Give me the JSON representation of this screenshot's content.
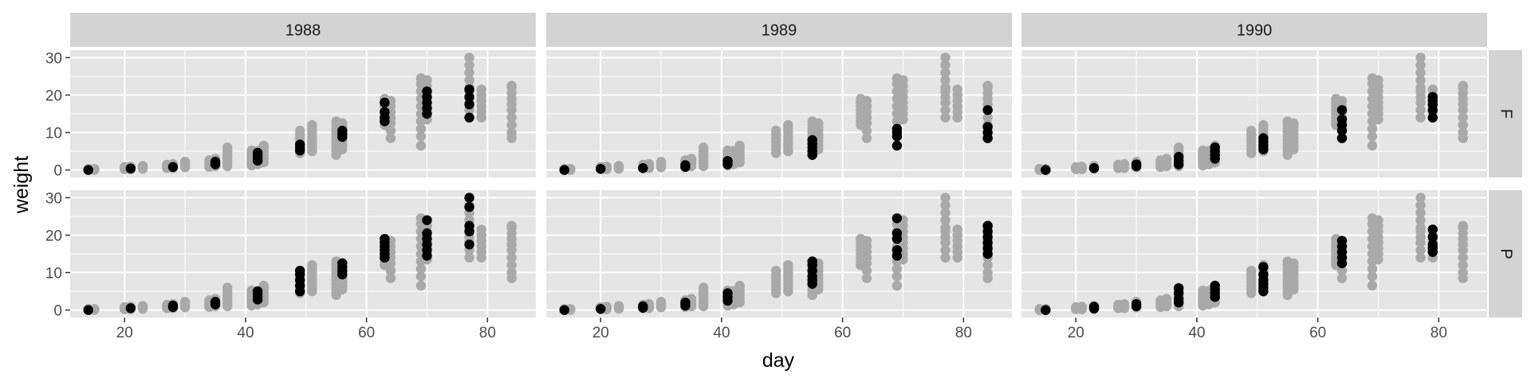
{
  "chart_data": {
    "type": "scatter",
    "xlabel": "day",
    "ylabel": "weight",
    "xlim": [
      11,
      88
    ],
    "ylim": [
      -2,
      32
    ],
    "x_ticks": [
      20,
      40,
      60,
      80
    ],
    "y_ticks": [
      0,
      10,
      20,
      30
    ],
    "grid": true,
    "columns": [
      "1988",
      "1989",
      "1990"
    ],
    "rows": [
      "F",
      "P"
    ],
    "colors": {
      "panel_bg": "#e5e5e5",
      "grid": "#ffffff",
      "strip_bg": "#d3d3d3",
      "background_points": "#a9a9a9",
      "highlight_points": "#000000"
    },
    "background_points": [
      {
        "day": 14,
        "weights": [
          0,
          0.3
        ]
      },
      {
        "day": 15,
        "weights": [
          0,
          0.3
        ]
      },
      {
        "day": 20,
        "weights": [
          0.2,
          0.5,
          0.8
        ]
      },
      {
        "day": 21,
        "weights": [
          0.2,
          0.5,
          0.9
        ]
      },
      {
        "day": 23,
        "weights": [
          0.3,
          0.7,
          1.1
        ]
      },
      {
        "day": 27,
        "weights": [
          0.5,
          0.9,
          1.4
        ]
      },
      {
        "day": 28,
        "weights": [
          0.5,
          1.0,
          1.6
        ]
      },
      {
        "day": 30,
        "weights": [
          0.7,
          1.2,
          1.9,
          2.2
        ]
      },
      {
        "day": 34,
        "weights": [
          0.8,
          1.3,
          1.9,
          2.6
        ]
      },
      {
        "day": 35,
        "weights": [
          1.0,
          1.6,
          2.3,
          3.0
        ]
      },
      {
        "day": 37,
        "weights": [
          1.0,
          1.8,
          2.6,
          3.4,
          4.2,
          5.0,
          6.0
        ]
      },
      {
        "day": 41,
        "weights": [
          1.2,
          2.0,
          2.8,
          3.6,
          4.4,
          5.2
        ]
      },
      {
        "day": 42,
        "weights": [
          1.5,
          2.4,
          3.3,
          4.2,
          5.1
        ]
      },
      {
        "day": 43,
        "weights": [
          2.0,
          3.0,
          4.0,
          5.0,
          6.0,
          6.5
        ]
      },
      {
        "day": 49,
        "weights": [
          4.5,
          5.5,
          6.5,
          7.5,
          8.5,
          9.5,
          10.5
        ]
      },
      {
        "day": 51,
        "weights": [
          5.0,
          6.0,
          7.0,
          8.0,
          9.0,
          10.0,
          11.0,
          12.0
        ]
      },
      {
        "day": 55,
        "weights": [
          4.0,
          5.0,
          6.0,
          7.0,
          8.0,
          9.0,
          10.0,
          11.0,
          12.0,
          13.0
        ]
      },
      {
        "day": 56,
        "weights": [
          5.5,
          6.5,
          7.5,
          8.5,
          9.5,
          10.5,
          11.5,
          12.5
        ]
      },
      {
        "day": 63,
        "weights": [
          12.0,
          13.0,
          14.0,
          15.0,
          16.0,
          17.0,
          18.0,
          19.0
        ]
      },
      {
        "day": 64,
        "weights": [
          8.5,
          10.5,
          12.5,
          14.0,
          15.5,
          17.0,
          18.5
        ]
      },
      {
        "day": 69,
        "weights": [
          6.5,
          9.0,
          11.0,
          13.0,
          15.0,
          17.0,
          19.0,
          21.0,
          23.0,
          24.5
        ]
      },
      {
        "day": 70,
        "weights": [
          13.5,
          15.0,
          16.5,
          18.0,
          19.5,
          21.0,
          22.5,
          24.0
        ]
      },
      {
        "day": 77,
        "weights": [
          14.0,
          16.0,
          18.0,
          19.5,
          21.0,
          22.0,
          24.0,
          26.0,
          28.0,
          30.0
        ]
      },
      {
        "day": 79,
        "weights": [
          14.0,
          15.5,
          17.0,
          18.5,
          20.0,
          21.5
        ]
      },
      {
        "day": 84,
        "weights": [
          8.5,
          10.0,
          12.0,
          14.0,
          16.0,
          17.5,
          19.0,
          20.5,
          22.0,
          22.5
        ]
      }
    ],
    "panels": [
      {
        "column": "1988",
        "row": "F",
        "highlight": [
          {
            "day": 14,
            "weights": [
              0
            ]
          },
          {
            "day": 21,
            "weights": [
              0.4
            ]
          },
          {
            "day": 28,
            "weights": [
              0.8
            ]
          },
          {
            "day": 35,
            "weights": [
              1.5,
              2.2
            ]
          },
          {
            "day": 42,
            "weights": [
              2.5,
              3.2,
              4.0,
              4.6
            ]
          },
          {
            "day": 49,
            "weights": [
              5.2,
              6.0,
              6.8
            ]
          },
          {
            "day": 56,
            "weights": [
              8.8,
              9.6,
              10.5
            ]
          },
          {
            "day": 63,
            "weights": [
              13.0,
              14.0,
              15.5,
              18.0
            ]
          },
          {
            "day": 70,
            "weights": [
              15.0,
              16.5,
              18.0,
              19.5,
              21.0
            ]
          },
          {
            "day": 77,
            "weights": [
              14.0,
              17.5,
              19.5,
              21.5
            ]
          }
        ]
      },
      {
        "column": "1989",
        "row": "F",
        "highlight": [
          {
            "day": 14,
            "weights": [
              0
            ]
          },
          {
            "day": 20,
            "weights": [
              0.3
            ]
          },
          {
            "day": 27,
            "weights": [
              0.5
            ]
          },
          {
            "day": 34,
            "weights": [
              0.8,
              1.3
            ]
          },
          {
            "day": 41,
            "weights": [
              1.5,
              2.4
            ]
          },
          {
            "day": 55,
            "weights": [
              4.0,
              5.0,
              6.0,
              7.0,
              8.0
            ]
          },
          {
            "day": 69,
            "weights": [
              6.5,
              9.0,
              10.0,
              11.0
            ]
          },
          {
            "day": 84,
            "weights": [
              8.5,
              10.0,
              11.5,
              16.0
            ]
          }
        ]
      },
      {
        "column": "1990",
        "row": "F",
        "highlight": [
          {
            "day": 15,
            "weights": [
              0
            ]
          },
          {
            "day": 23,
            "weights": [
              0.5
            ]
          },
          {
            "day": 30,
            "weights": [
              1.0,
              1.5
            ]
          },
          {
            "day": 37,
            "weights": [
              1.5,
              2.5,
              3.5
            ]
          },
          {
            "day": 43,
            "weights": [
              3.0,
              4.0,
              5.0,
              6.0
            ]
          },
          {
            "day": 51,
            "weights": [
              5.5,
              6.5,
              7.5,
              8.5
            ]
          },
          {
            "day": 64,
            "weights": [
              8.5,
              10.5,
              12.0,
              13.5,
              16.0
            ]
          },
          {
            "day": 79,
            "weights": [
              14.0,
              16.0,
              17.5,
              18.5,
              19.5
            ]
          }
        ]
      },
      {
        "column": "1988",
        "row": "P",
        "highlight": [
          {
            "day": 14,
            "weights": [
              0
            ]
          },
          {
            "day": 21,
            "weights": [
              0.5
            ]
          },
          {
            "day": 28,
            "weights": [
              0.8,
              1.2
            ]
          },
          {
            "day": 35,
            "weights": [
              1.5,
              2.2
            ]
          },
          {
            "day": 42,
            "weights": [
              2.8,
              3.6,
              4.4,
              5.0
            ]
          },
          {
            "day": 49,
            "weights": [
              5.0,
              6.5,
              8.0,
              9.5,
              10.5
            ]
          },
          {
            "day": 56,
            "weights": [
              9.5,
              10.5,
              11.5,
              12.5
            ]
          },
          {
            "day": 63,
            "weights": [
              14.0,
              15.0,
              16.0,
              17.0,
              18.0,
              19.0
            ]
          },
          {
            "day": 70,
            "weights": [
              14.5,
              16.0,
              17.5,
              19.0,
              20.5,
              24.0
            ]
          },
          {
            "day": 77,
            "weights": [
              17.5,
              21.0,
              22.5,
              27.5,
              30.0
            ]
          }
        ]
      },
      {
        "column": "1989",
        "row": "P",
        "highlight": [
          {
            "day": 14,
            "weights": [
              0
            ]
          },
          {
            "day": 20,
            "weights": [
              0.3
            ]
          },
          {
            "day": 27,
            "weights": [
              0.6,
              1.0
            ]
          },
          {
            "day": 34,
            "weights": [
              1.2,
              2.0
            ]
          },
          {
            "day": 41,
            "weights": [
              2.5,
              3.5,
              4.5
            ]
          },
          {
            "day": 55,
            "weights": [
              7.0,
              8.0,
              9.0,
              10.5,
              12.0,
              13.0
            ]
          },
          {
            "day": 69,
            "weights": [
              14.5,
              16.0,
              19.0,
              20.5,
              24.5
            ]
          },
          {
            "day": 84,
            "weights": [
              15.0,
              16.5,
              18.0,
              19.5,
              21.0,
              22.5
            ]
          }
        ]
      },
      {
        "column": "1990",
        "row": "P",
        "highlight": [
          {
            "day": 15,
            "weights": [
              0
            ]
          },
          {
            "day": 23,
            "weights": [
              0.4,
              0.9
            ]
          },
          {
            "day": 30,
            "weights": [
              1.0,
              1.6
            ]
          },
          {
            "day": 37,
            "weights": [
              2.0,
              3.0,
              4.5,
              5.8
            ]
          },
          {
            "day": 43,
            "weights": [
              3.5,
              4.5,
              5.5,
              6.5
            ]
          },
          {
            "day": 51,
            "weights": [
              5.0,
              6.0,
              7.0,
              8.0,
              9.5,
              11.5
            ]
          },
          {
            "day": 64,
            "weights": [
              12.5,
              14.0,
              15.5,
              17.0,
              18.5
            ]
          },
          {
            "day": 79,
            "weights": [
              15.5,
              16.5,
              17.5,
              19.5,
              21.5
            ]
          }
        ]
      }
    ]
  }
}
